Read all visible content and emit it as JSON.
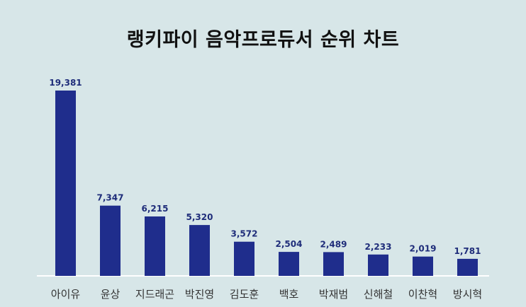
{
  "chart_data": {
    "type": "bar",
    "title": "랭키파이 음악프로듀서 순위 차트",
    "categories": [
      "아이유",
      "윤상",
      "지드래곤",
      "박진영",
      "김도훈",
      "백호",
      "박재범",
      "신해철",
      "이찬혁",
      "방시혁"
    ],
    "values": [
      19381,
      7347,
      6215,
      5320,
      3572,
      2504,
      2489,
      2233,
      2019,
      1781
    ],
    "value_labels": [
      "19,381",
      "7,347",
      "6,215",
      "5,320",
      "3,572",
      "2,504",
      "2,489",
      "2,233",
      "2,019",
      "1,781"
    ],
    "xlabel": "",
    "ylabel": "",
    "ylim": [
      0,
      19381
    ],
    "grid": false,
    "legend": "none",
    "colors": {
      "bar": "#1f2d8c",
      "value_label": "#1f2d7a",
      "background": "#d7e6e8",
      "baseline": "#ffffff"
    }
  }
}
